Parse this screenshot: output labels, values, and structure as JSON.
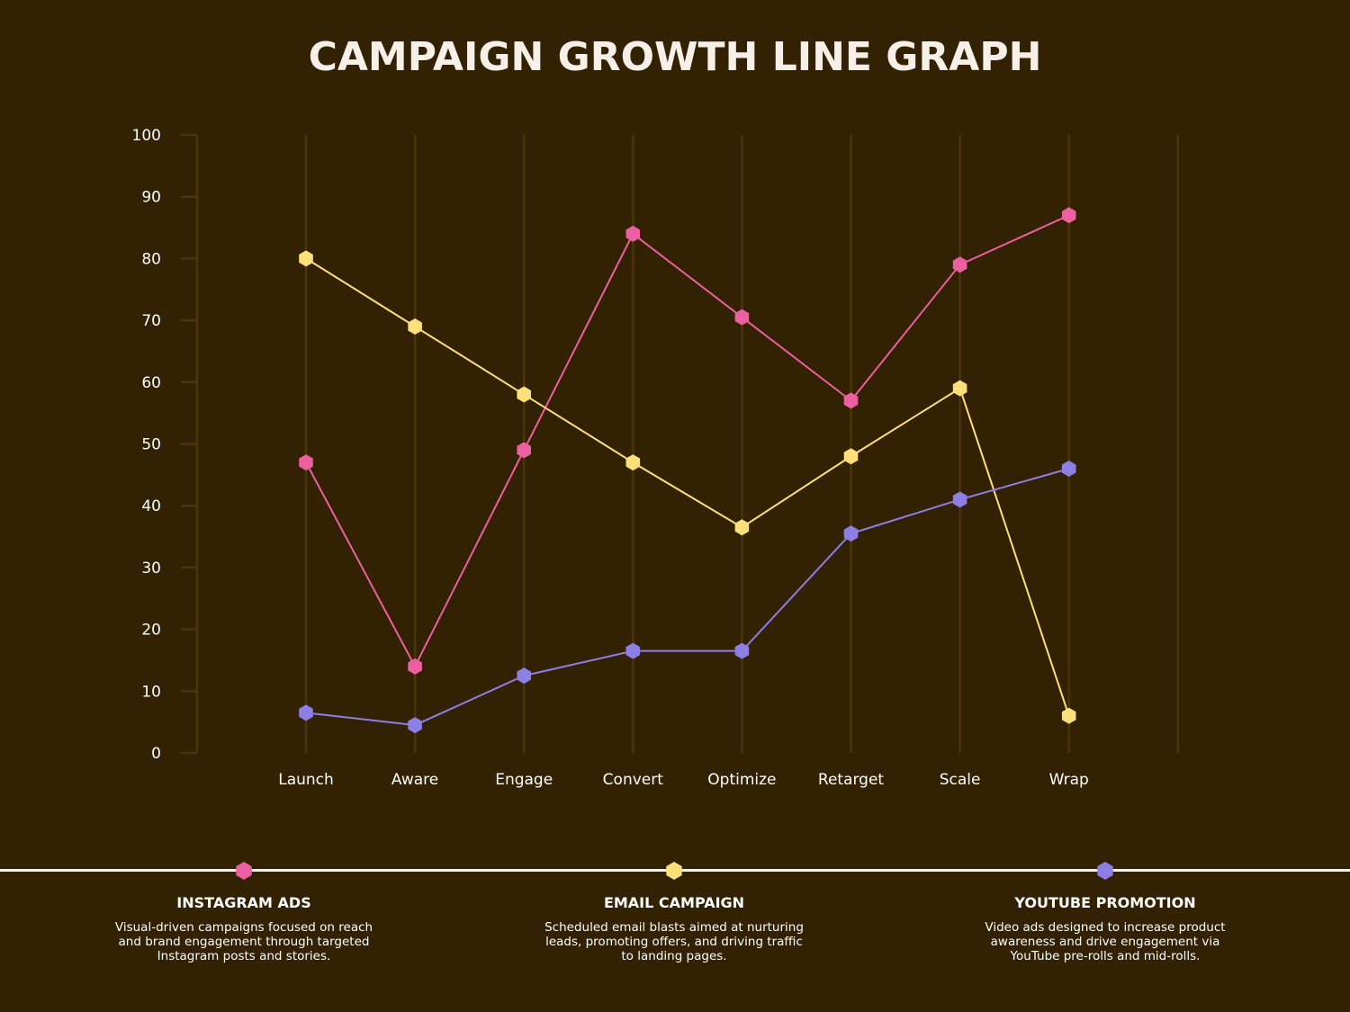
{
  "chart_data": {
    "type": "line",
    "title": "CAMPAIGN GROWTH LINE GRAPH",
    "categories": [
      "Launch",
      "Aware",
      "Engage",
      "Convert",
      "Optimize",
      "Retarget",
      "Scale",
      "Wrap"
    ],
    "ylim": [
      0,
      100
    ],
    "yticks": [
      0,
      10,
      20,
      30,
      40,
      50,
      60,
      70,
      80,
      90,
      100
    ],
    "grid": "vertical",
    "legend_position": "bottom",
    "series": [
      {
        "name": "INSTAGRAM ADS",
        "color": "#ec5fa0",
        "values": [
          47,
          14,
          49,
          84,
          70.5,
          57,
          79,
          87
        ],
        "description": "Visual-driven campaigns focused on reach and brand engagement through targeted Instagram posts and stories."
      },
      {
        "name": "EMAIL CAMPAIGN",
        "color": "#fde07a",
        "values": [
          80,
          69,
          58,
          47,
          36.5,
          48,
          59,
          6
        ],
        "description": "Scheduled email blasts aimed at nurturing leads, promoting offers, and driving traffic to landing pages."
      },
      {
        "name": "YOUTUBE PROMOTION",
        "color": "#8e7fe6",
        "values": [
          6.5,
          4.5,
          12.5,
          16.5,
          16.5,
          35.5,
          41,
          46
        ],
        "description": "Video ads designed to increase product awareness and drive engagement via YouTube pre-rolls and mid-rolls."
      }
    ]
  }
}
